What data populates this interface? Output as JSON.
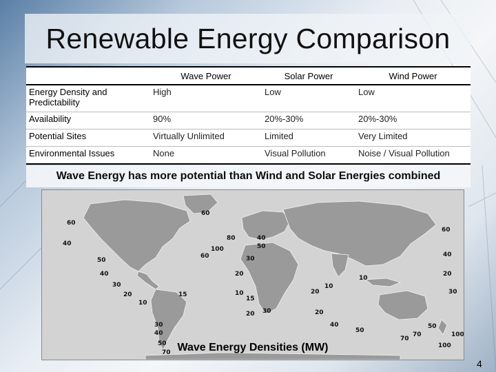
{
  "slide": {
    "title": "Renewable Energy Comparison",
    "page_number": "4"
  },
  "table": {
    "columns": [
      "",
      "Wave Power",
      "Solar Power",
      "Wind Power"
    ],
    "rows": [
      {
        "label": "Energy Density and Predictability",
        "values": [
          "High",
          "Low",
          "Low"
        ]
      },
      {
        "label": "Availability",
        "values": [
          "90%",
          "20%-30%",
          "20%-30%"
        ]
      },
      {
        "label": "Potential Sites",
        "values": [
          "Virtually Unlimited",
          "Limited",
          "Very Limited"
        ]
      },
      {
        "label": "Environmental Issues",
        "values": [
          "None",
          "Visual Pollution",
          "Noise / Visual Pollution"
        ]
      }
    ]
  },
  "claim": "Wave Energy has more potential than Wind and Solar Energies combined",
  "map": {
    "caption": "Wave Energy Densities (MW)",
    "labels": [
      "60",
      "50",
      "40",
      "30",
      "20",
      "10",
      "15",
      "30",
      "40",
      "50",
      "70",
      "60",
      "100",
      "80",
      "40",
      "50",
      "30",
      "20",
      "10",
      "15",
      "20",
      "30",
      "20",
      "10",
      "20",
      "40",
      "50",
      "70",
      "100",
      "60",
      "40",
      "20",
      "30",
      "50",
      "70",
      "100",
      "60",
      "40",
      "10"
    ]
  }
}
